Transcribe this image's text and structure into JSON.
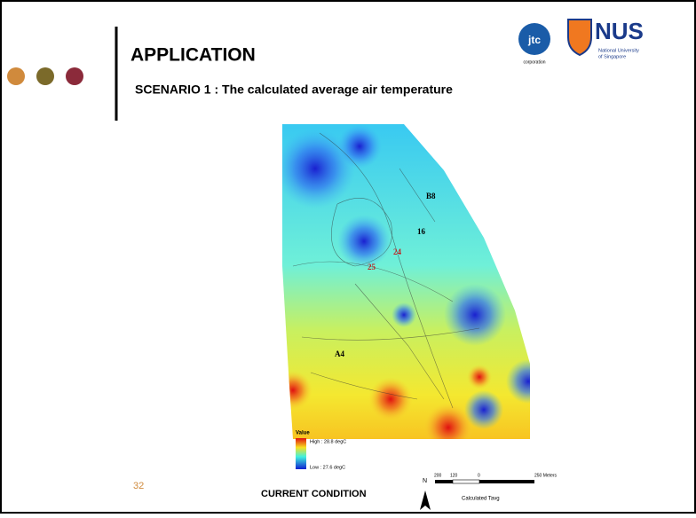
{
  "slide": {
    "title": "APPLICATION",
    "subtitle": "SCENARIO 1 : The calculated average air temperature",
    "page_number": "32",
    "caption": "CURRENT CONDITION"
  },
  "logos": {
    "jtc": "jtc",
    "jtc_sub": "corporation",
    "nus": "NUS",
    "nus_sub": [
      "National University",
      "of Singapore"
    ]
  },
  "map": {
    "labels": [
      "B8",
      "16",
      "24",
      "25",
      "A4"
    ],
    "legend": {
      "title": "Value",
      "high": "High : 28.8 degC",
      "low": "Low : 27.6 degC"
    },
    "north": "N",
    "scale": [
      "200",
      "120",
      "0",
      "250 Meters"
    ],
    "scale_title": "Calculated Tavg"
  }
}
